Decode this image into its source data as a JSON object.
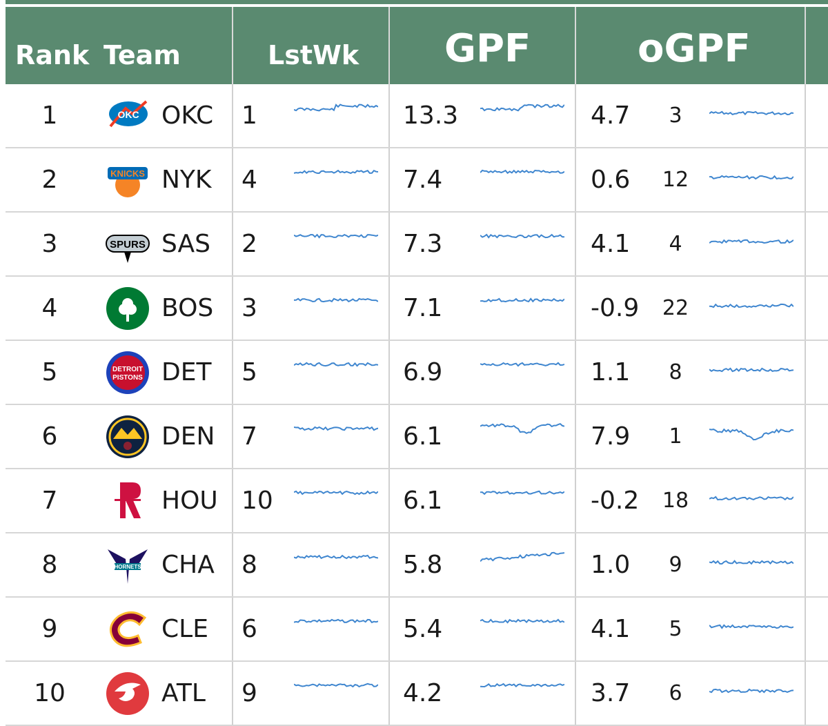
{
  "header": {
    "rank": "Rank",
    "team": "Team",
    "lstwk": "LstWk",
    "gpf": "GPF",
    "ogpf": "oGPF"
  },
  "colors": {
    "header_bg": "#5a8a70",
    "spark": "#3f86cf"
  },
  "rows": [
    {
      "rank": "1",
      "team": "OKC",
      "logo": "okc-thunder-logo",
      "lstwk": "1",
      "gpf": "13.3",
      "ogpf": "4.7",
      "ogpf_rank": "3"
    },
    {
      "rank": "2",
      "team": "NYK",
      "logo": "ny-knicks-logo",
      "lstwk": "4",
      "gpf": "7.4",
      "ogpf": "0.6",
      "ogpf_rank": "12"
    },
    {
      "rank": "3",
      "team": "SAS",
      "logo": "sa-spurs-logo",
      "lstwk": "2",
      "gpf": "7.3",
      "ogpf": "4.1",
      "ogpf_rank": "4"
    },
    {
      "rank": "4",
      "team": "BOS",
      "logo": "boston-celtics-logo",
      "lstwk": "3",
      "gpf": "7.1",
      "ogpf": "-0.9",
      "ogpf_rank": "22"
    },
    {
      "rank": "5",
      "team": "DET",
      "logo": "detroit-pistons-logo",
      "lstwk": "5",
      "gpf": "6.9",
      "ogpf": "1.1",
      "ogpf_rank": "8"
    },
    {
      "rank": "6",
      "team": "DEN",
      "logo": "denver-nuggets-logo",
      "lstwk": "7",
      "gpf": "6.1",
      "ogpf": "7.9",
      "ogpf_rank": "1"
    },
    {
      "rank": "7",
      "team": "HOU",
      "logo": "houston-rockets-logo",
      "lstwk": "10",
      "gpf": "6.1",
      "ogpf": "-0.2",
      "ogpf_rank": "18"
    },
    {
      "rank": "8",
      "team": "CHA",
      "logo": "charlotte-hornets-logo",
      "lstwk": "8",
      "gpf": "5.8",
      "ogpf": "1.0",
      "ogpf_rank": "9"
    },
    {
      "rank": "9",
      "team": "CLE",
      "logo": "cleveland-cavs-logo",
      "lstwk": "6",
      "gpf": "5.4",
      "ogpf": "4.1",
      "ogpf_rank": "5"
    },
    {
      "rank": "10",
      "team": "ATL",
      "logo": "atlanta-hawks-logo",
      "lstwk": "9",
      "gpf": "4.2",
      "ogpf": "3.7",
      "ogpf_rank": "6"
    }
  ]
}
